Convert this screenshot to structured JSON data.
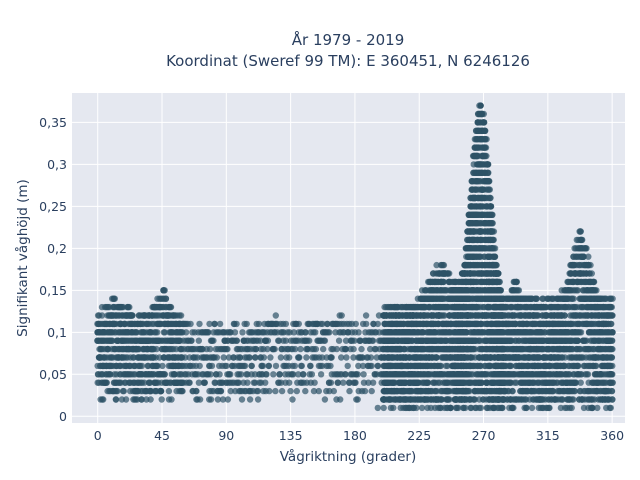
{
  "chart_data": {
    "type": "scatter",
    "title_line1": "År 1979 - 2019",
    "title_line2": "Koordinat (Sweref 99 TM): E 360451, N 6246126",
    "xlabel": "Vågriktning (grader)",
    "ylabel": "Signifikant våghöjd (m)",
    "xlim": [
      -18,
      369
    ],
    "ylim": [
      -0.008,
      0.385
    ],
    "xticks": [
      0,
      45,
      90,
      135,
      180,
      225,
      270,
      315,
      360
    ],
    "xtick_labels": [
      "0",
      "45",
      "90",
      "135",
      "180",
      "225",
      "270",
      "315",
      "360"
    ],
    "yticks": [
      0,
      0.05,
      0.1,
      0.15,
      0.2,
      0.25,
      0.3,
      0.35
    ],
    "ytick_labels": [
      "0",
      "0,05",
      "0,1",
      "0,15",
      "0,2",
      "0,25",
      "0,3",
      "0,35"
    ],
    "grid": true,
    "legend": false,
    "marker_color": "#2e5266",
    "plot_bg": "#e5e8f0",
    "direction_profile": [
      {
        "dir_range": [
          0,
          60
        ],
        "h_range": [
          0.01,
          0.15
        ],
        "density": "medium"
      },
      {
        "dir_range": [
          60,
          120
        ],
        "h_range": [
          0.01,
          0.12
        ],
        "density": "low"
      },
      {
        "dir_range": [
          120,
          200
        ],
        "h_range": [
          0.01,
          0.13
        ],
        "density": "low"
      },
      {
        "dir_range": [
          200,
          250
        ],
        "h_range": [
          0.01,
          0.23
        ],
        "density": "high"
      },
      {
        "dir_range": [
          250,
          280
        ],
        "h_range": [
          0.01,
          0.37
        ],
        "density": "very high"
      },
      {
        "dir_range": [
          280,
          360
        ],
        "h_range": [
          0.01,
          0.22
        ],
        "density": "high"
      }
    ],
    "peak": {
      "direction": 268,
      "height": 0.37
    }
  }
}
